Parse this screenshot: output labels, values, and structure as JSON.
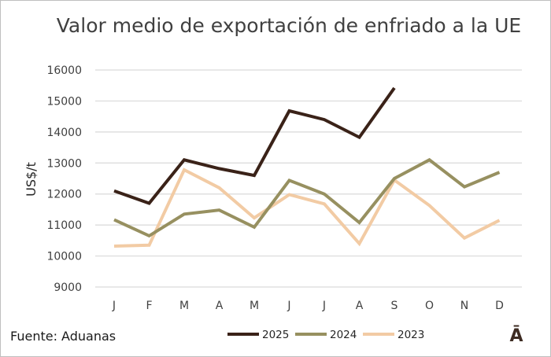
{
  "chart_data": {
    "type": "line",
    "title": "Valor medio de exportación de enfriado a la UE",
    "xlabel": "",
    "ylabel": "US$/t",
    "categories": [
      "J",
      "F",
      "M",
      "A",
      "M",
      "J",
      "J",
      "A",
      "S",
      "O",
      "N",
      "D"
    ],
    "ylim": [
      9000,
      16000
    ],
    "yticks": [
      9000,
      10000,
      11000,
      12000,
      13000,
      14000,
      15000,
      16000
    ],
    "grid": true,
    "legend_position": "bottom",
    "series": [
      {
        "name": "2025",
        "color": "#3a2218",
        "values": [
          12100,
          11700,
          13100,
          12820,
          12600,
          14680,
          14400,
          13830,
          15420,
          null,
          null,
          null
        ]
      },
      {
        "name": "2024",
        "color": "#979060",
        "values": [
          11170,
          10650,
          11350,
          11480,
          10930,
          12440,
          12000,
          11080,
          12500,
          13100,
          12230,
          12700
        ]
      },
      {
        "name": "2023",
        "color": "#f2cba4",
        "values": [
          10320,
          10350,
          12780,
          12200,
          11230,
          11980,
          11680,
          10400,
          12450,
          11630,
          10580,
          11150
        ]
      }
    ]
  },
  "footer": {
    "source": "Fuente: Aduanas",
    "logo": "Ā"
  }
}
